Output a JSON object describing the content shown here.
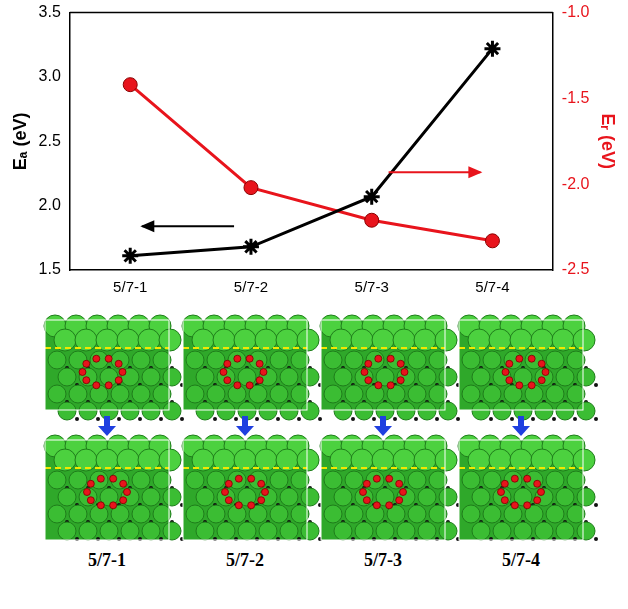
{
  "chart_data": {
    "type": "line",
    "categories": [
      "5/7-1",
      "5/7-2",
      "5/7-3",
      "5/7-4"
    ],
    "y_label": "Eₐ (eV)",
    "y2_label": "Eᵣ (eV)",
    "ylim": [
      1.5,
      3.5
    ],
    "yticks": [
      1.5,
      {
        "value": 2,
        "label": "2.0"
      },
      2.5,
      {
        "value": 3,
        "label": "3.0"
      },
      3.5
    ],
    "y2lim": [
      -2.5,
      -1.0
    ],
    "y2ticks": [
      -2.5,
      {
        "value": -2,
        "label": "-2.0"
      },
      -1.5,
      {
        "value": -1,
        "label": "-1.0"
      }
    ],
    "grid": false,
    "series": [
      {
        "color": "#000000",
        "marker": "star",
        "line_style": "solid",
        "values": [
          1.61,
          1.68,
          2.07,
          3.22
        ]
      },
      {
        "color": "#e8141c",
        "marker": "circle",
        "line_style": "solid",
        "axis": "y2",
        "values": [
          -1.42,
          -2.02,
          -2.21,
          -2.33
        ]
      }
    ]
  },
  "panels": {
    "labels": [
      "5/7-1",
      "5/7-2",
      "5/7-3",
      "5/7-4"
    ]
  }
}
